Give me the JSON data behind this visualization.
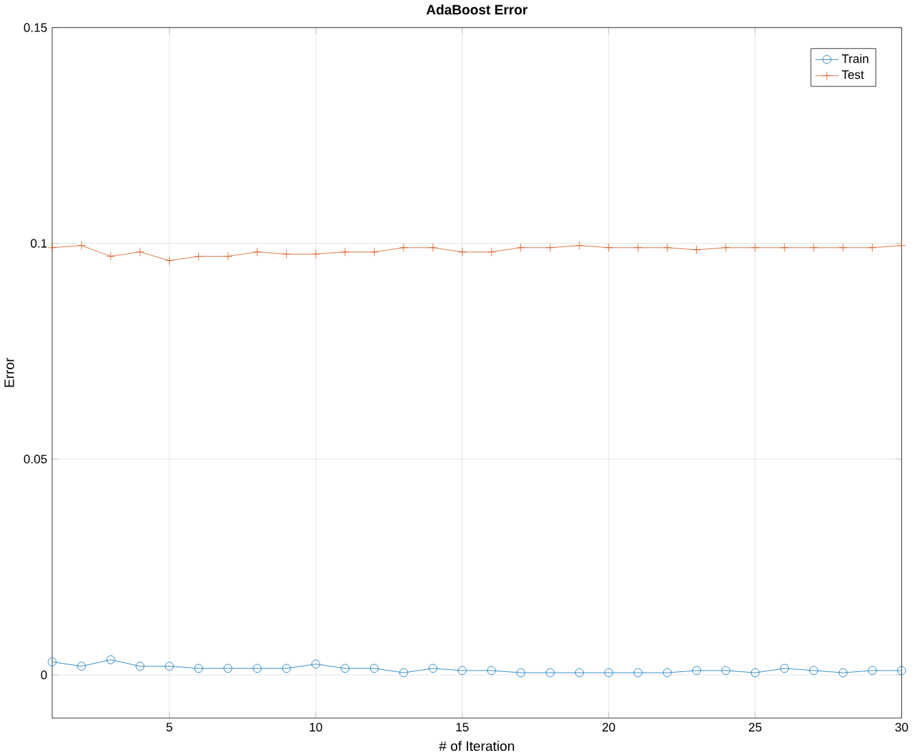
{
  "chart_data": {
    "type": "line",
    "title": "AdaBoost Error",
    "xlabel": "# of Iteration",
    "ylabel": "Error",
    "x": [
      1,
      2,
      3,
      4,
      5,
      6,
      7,
      8,
      9,
      10,
      11,
      12,
      13,
      14,
      15,
      16,
      17,
      18,
      19,
      20,
      21,
      22,
      23,
      24,
      25,
      26,
      27,
      28,
      29,
      30
    ],
    "series": [
      {
        "name": "Train",
        "color": "#0072bd",
        "marker": "circle",
        "values": [
          0.003,
          0.002,
          0.0035,
          0.002,
          0.002,
          0.0015,
          0.0015,
          0.0015,
          0.0015,
          0.0025,
          0.0015,
          0.0015,
          0.0005,
          0.0015,
          0.001,
          0.001,
          0.0005,
          0.0005,
          0.0005,
          0.0005,
          0.0005,
          0.0005,
          0.001,
          0.001,
          0.0005,
          0.0015,
          0.001,
          0.0005,
          0.001,
          0.001
        ]
      },
      {
        "name": "Test",
        "color": "#d95319",
        "marker": "cross",
        "values": [
          0.099,
          0.0995,
          0.097,
          0.098,
          0.096,
          0.097,
          0.097,
          0.098,
          0.0975,
          0.0975,
          0.098,
          0.098,
          0.099,
          0.099,
          0.098,
          0.098,
          0.099,
          0.099,
          0.0995,
          0.099,
          0.099,
          0.099,
          0.0985,
          0.099,
          0.099,
          0.099,
          0.099,
          0.099,
          0.099,
          0.0995
        ]
      }
    ],
    "xlim": [
      1,
      30
    ],
    "ylim": [
      -0.01,
      0.15
    ],
    "xticks": [
      5,
      10,
      15,
      20,
      25,
      30
    ],
    "yticks": [
      0,
      0.05,
      0.1,
      0.15
    ],
    "grid": true,
    "legend": "top right",
    "line_style": "solid"
  }
}
